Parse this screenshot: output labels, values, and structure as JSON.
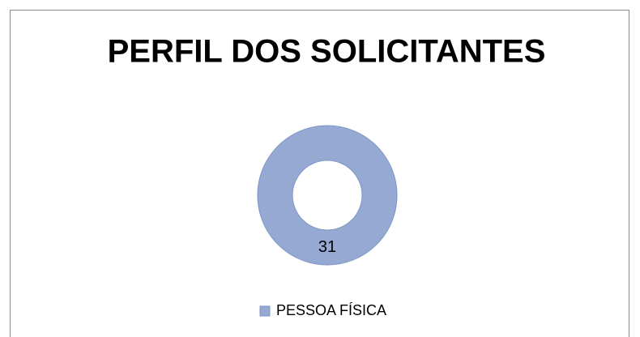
{
  "chart_data": {
    "type": "donut",
    "title": "PERFIL DOS SOLICITANTES",
    "categories": [
      "PESSOA FÍSICA"
    ],
    "values": [
      31
    ],
    "colors": [
      "#95a9d3"
    ],
    "legend": "bottom"
  }
}
